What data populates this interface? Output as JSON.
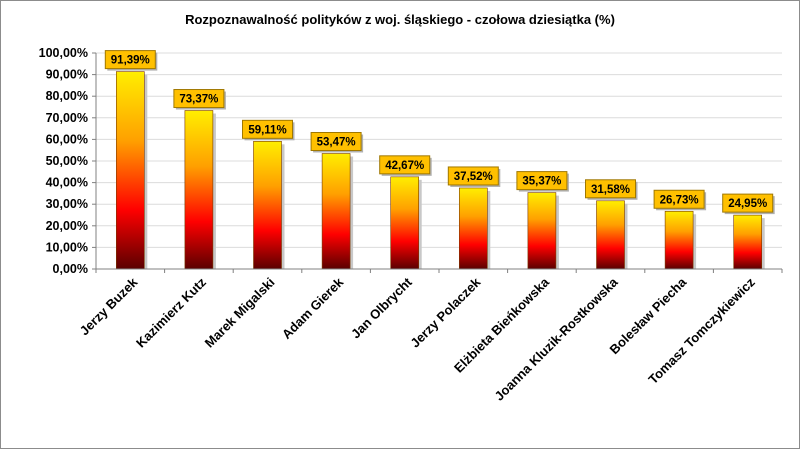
{
  "chart_data": {
    "type": "bar",
    "title": "Rozpoznawalność polityków z woj. śląskiego - czołowa dziesiątka (%)",
    "xlabel": "",
    "ylabel": "",
    "ylim": [
      0,
      100
    ],
    "y_ticks": [
      "0,00%",
      "10,00%",
      "20,00%",
      "30,00%",
      "40,00%",
      "50,00%",
      "60,00%",
      "70,00%",
      "80,00%",
      "90,00%",
      "100,00%"
    ],
    "grid": true,
    "legend": "none",
    "categories": [
      "Jerzy Buzek",
      "Kazimierz Kutz",
      "Marek Migalski",
      "Adam Gierek",
      "Jan Olbrycht",
      "Jerzy Polaczek",
      "Elżbieta Bieńkowska",
      "Joanna Kluzik-Rostkowska",
      "Bolesław Piecha",
      "Tomasz Tomczykiewicz"
    ],
    "values": [
      91.39,
      73.37,
      59.11,
      53.47,
      42.67,
      37.52,
      35.37,
      31.58,
      26.73,
      24.95
    ],
    "data_labels": [
      "91,39%",
      "73,37%",
      "59,11%",
      "53,47%",
      "42,67%",
      "37,52%",
      "35,37%",
      "31,58%",
      "26,73%",
      "24,95%"
    ],
    "colors": {
      "bar_top": "#ffee00",
      "bar_mid": "#ff0000",
      "bar_bottom": "#5a0000",
      "label_bg": "#ffc000",
      "label_border": "#a07800",
      "grid": "#dcdcdc"
    }
  }
}
